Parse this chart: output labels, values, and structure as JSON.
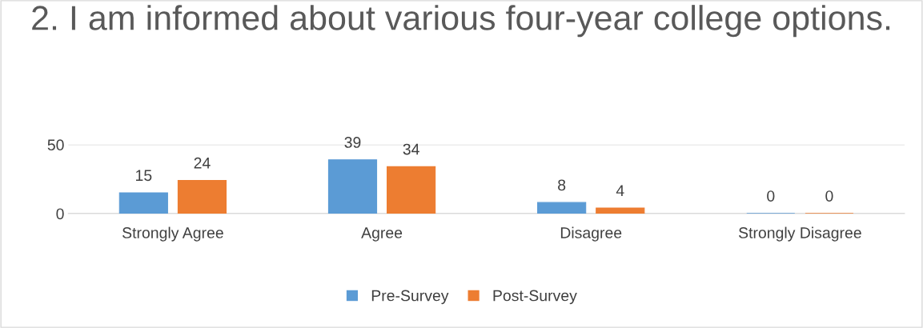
{
  "chart_data": {
    "type": "bar",
    "title": "2. I am informed about various four-year college options.",
    "categories": [
      "Strongly Agree",
      "Agree",
      "Disagree",
      "Strongly Disagree"
    ],
    "series": [
      {
        "name": "Pre-Survey",
        "color": "#5b9bd5",
        "values": [
          15,
          39,
          8,
          0
        ]
      },
      {
        "name": "Post-Survey",
        "color": "#ed7d31",
        "values": [
          24,
          34,
          4,
          0
        ]
      }
    ],
    "ylim": [
      0,
      50
    ],
    "yticks": [
      0,
      50
    ],
    "grid": "y",
    "legend": "bottom",
    "data_labels": true
  }
}
